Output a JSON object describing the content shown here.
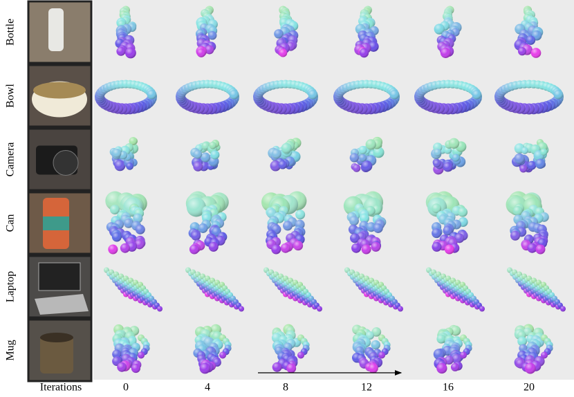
{
  "rows": [
    {
      "label": "Bottle"
    },
    {
      "label": "Bowl"
    },
    {
      "label": "Camera"
    },
    {
      "label": "Can"
    },
    {
      "label": "Laptop"
    },
    {
      "label": "Mug"
    }
  ],
  "axis": {
    "label": "Iterations",
    "ticks": [
      0,
      4,
      8,
      12,
      16,
      20
    ]
  }
}
